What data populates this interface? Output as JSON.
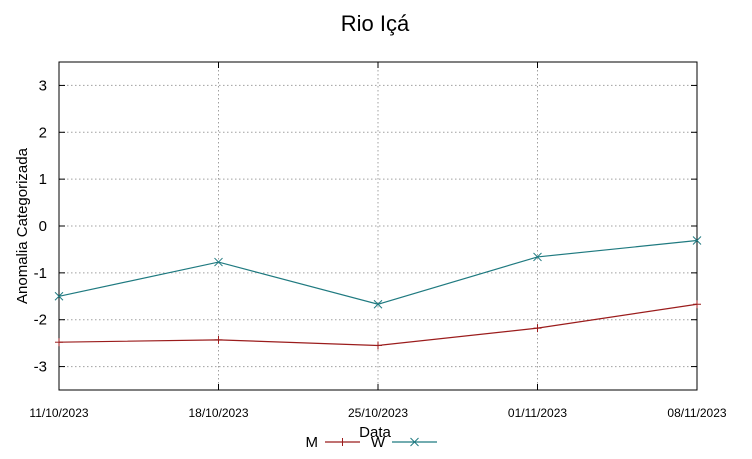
{
  "chart_data": {
    "type": "line",
    "title": "Rio Içá",
    "xlabel": "Data",
    "ylabel": "Anomalia Categorizada",
    "categories": [
      "11/10/2023",
      "18/10/2023",
      "25/10/2023",
      "01/11/2023",
      "08/11/2023"
    ],
    "x": [
      "2023-10-11",
      "2023-10-18",
      "2023-10-25",
      "2023-11-01",
      "2023-11-08"
    ],
    "yticks": [
      3,
      2,
      1,
      0,
      -1,
      -2,
      -3
    ],
    "ylim": [
      -3.5,
      3.5
    ],
    "grid": true,
    "legend": "bottom-center",
    "series": [
      {
        "name": "M",
        "color": "#9b1c1c",
        "marker": "+",
        "values": [
          -2.48,
          -2.43,
          -2.55,
          -2.18,
          -1.67
        ]
      },
      {
        "name": "W",
        "color": "#1f7a80",
        "marker": "x",
        "values": [
          -1.5,
          -0.77,
          -1.67,
          -0.66,
          -0.31
        ]
      }
    ]
  }
}
